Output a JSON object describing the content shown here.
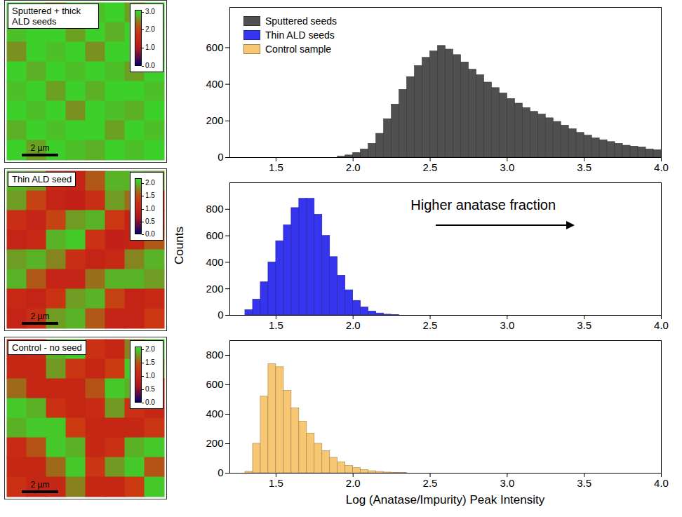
{
  "chart_data": [
    {
      "type": "heatmap",
      "title": "Sputtered + thick ALD seeds",
      "scale_bar": "2 µm",
      "colorbar": {
        "lim": [
          0,
          3.1
        ],
        "ticks": [
          {
            "value": 0,
            "label": "0.0"
          },
          {
            "value": 1,
            "label": "1.0"
          },
          {
            "value": 2,
            "label": "2.0"
          },
          {
            "value": 3,
            "label": "3.0"
          }
        ]
      },
      "cells": [
        [
          3.0,
          2.9,
          2.6,
          3.0,
          2.9,
          3.0,
          2.7,
          3.0
        ],
        [
          2.9,
          3.0,
          3.0,
          2.7,
          3.0,
          2.8,
          3.0,
          2.9
        ],
        [
          2.6,
          3.0,
          2.9,
          3.0,
          2.6,
          3.0,
          3.0,
          2.8
        ],
        [
          3.0,
          2.8,
          3.0,
          2.9,
          3.0,
          2.9,
          2.7,
          3.0
        ],
        [
          2.9,
          3.0,
          2.7,
          3.0,
          2.8,
          3.0,
          3.0,
          2.9
        ],
        [
          3.0,
          2.9,
          3.0,
          2.6,
          3.0,
          2.9,
          2.8,
          3.0
        ],
        [
          2.8,
          3.0,
          2.9,
          3.0,
          3.0,
          2.7,
          3.0,
          2.9
        ],
        [
          3.0,
          2.7,
          3.0,
          2.9,
          2.8,
          3.0,
          2.9,
          3.0
        ]
      ]
    },
    {
      "type": "heatmap",
      "title": "Thin ALD seed",
      "scale_bar": "2 µm",
      "colorbar": {
        "lim": [
          0,
          2.2
        ],
        "ticks": [
          {
            "value": 0,
            "label": "0.0"
          },
          0.5,
          {
            "value": 1,
            "label": "1.0"
          },
          1.5,
          {
            "value": 2,
            "label": "2.0"
          }
        ]
      },
      "cells": [
        [
          2.0,
          1.9,
          1.1,
          1.0,
          1.6,
          2.0,
          2.0,
          1.9
        ],
        [
          1.9,
          1.5,
          1.0,
          0.9,
          1.2,
          1.9,
          1.7,
          1.2
        ],
        [
          1.2,
          1.0,
          1.5,
          1.9,
          2.0,
          1.4,
          1.0,
          1.1
        ],
        [
          1.0,
          1.1,
          2.0,
          2.1,
          1.3,
          0.9,
          1.0,
          1.6
        ],
        [
          1.9,
          2.0,
          1.8,
          1.2,
          1.0,
          1.1,
          1.8,
          2.0
        ],
        [
          2.0,
          1.6,
          1.0,
          1.0,
          1.7,
          2.0,
          2.0,
          1.9
        ],
        [
          1.1,
          1.0,
          1.3,
          1.9,
          2.0,
          1.5,
          1.0,
          1.1
        ],
        [
          1.0,
          1.2,
          1.9,
          2.0,
          1.6,
          1.0,
          1.0,
          1.4
        ]
      ]
    },
    {
      "type": "heatmap",
      "title": "Control - no seed",
      "scale_bar": "2 µm",
      "colorbar": {
        "lim": [
          0,
          2.1
        ],
        "ticks": [
          {
            "value": 0,
            "label": "0.0"
          },
          0.5,
          {
            "value": 1,
            "label": "1.0"
          },
          1.5,
          {
            "value": 2,
            "label": "2.0"
          }
        ]
      },
      "cells": [
        [
          1.0,
          1.1,
          1.9,
          2.0,
          1.2,
          1.0,
          1.7,
          2.0
        ],
        [
          1.0,
          1.0,
          1.8,
          1.3,
          1.0,
          1.4,
          2.0,
          1.8
        ],
        [
          1.6,
          1.0,
          1.0,
          1.0,
          1.5,
          2.0,
          1.9,
          1.1
        ],
        [
          2.0,
          1.9,
          1.2,
          1.0,
          1.1,
          1.8,
          1.2,
          1.0
        ],
        [
          1.9,
          2.0,
          2.0,
          1.4,
          1.0,
          1.0,
          1.0,
          1.3
        ],
        [
          1.1,
          1.5,
          2.0,
          1.9,
          1.0,
          1.2,
          1.9,
          2.0
        ],
        [
          1.0,
          1.0,
          1.6,
          2.0,
          1.3,
          1.8,
          2.0,
          1.5
        ],
        [
          1.2,
          1.0,
          1.0,
          1.7,
          1.0,
          1.0,
          1.4,
          2.0
        ]
      ]
    },
    {
      "type": "histogram",
      "xlabel": "Log (Anatase/Impurity) Peak Intensity",
      "ylabel": "Counts",
      "xlim": [
        1.2,
        4.0
      ],
      "xticks": [
        1.5,
        {
          "value": 2,
          "label": "2.0"
        },
        2.5,
        {
          "value": 3,
          "label": "3.0"
        },
        3.5,
        {
          "value": 4,
          "label": "4.0"
        }
      ],
      "legend": "top-left",
      "annotations": [
        {
          "text": "Higher anatase fraction"
        }
      ],
      "bins": [
        1.2,
        1.25,
        1.3,
        1.35,
        1.4,
        1.45,
        1.5,
        1.55,
        1.6,
        1.65,
        1.7,
        1.75,
        1.8,
        1.85,
        1.9,
        1.95,
        2.0,
        2.05,
        2.1,
        2.15,
        2.2,
        2.25,
        2.3,
        2.35,
        2.4,
        2.45,
        2.5,
        2.55,
        2.6,
        2.65,
        2.7,
        2.75,
        2.8,
        2.85,
        2.9,
        2.95,
        3.0,
        3.05,
        3.1,
        3.15,
        3.2,
        3.25,
        3.3,
        3.35,
        3.4,
        3.45,
        3.5,
        3.55,
        3.6,
        3.65,
        3.7,
        3.75,
        3.8,
        3.85,
        3.9,
        3.95,
        4.0
      ],
      "series": [
        {
          "name": "Sputtered seeds",
          "color": "#505050",
          "ylim": [
            0,
            820
          ],
          "yticks": [
            0,
            200,
            400,
            600
          ],
          "values": [
            0,
            0,
            0,
            0,
            0,
            0,
            0,
            0,
            0,
            0,
            0,
            0,
            0,
            0,
            5,
            12,
            25,
            45,
            75,
            130,
            210,
            290,
            370,
            440,
            500,
            545,
            580,
            610,
            590,
            560,
            520,
            480,
            450,
            410,
            380,
            350,
            320,
            295,
            270,
            250,
            235,
            215,
            195,
            175,
            155,
            135,
            120,
            105,
            95,
            85,
            75,
            65,
            60,
            55,
            45,
            40
          ]
        },
        {
          "name": "Thin ALD seeds",
          "color": "#3535f0",
          "ylim": [
            0,
            1000
          ],
          "yticks": [
            0,
            200,
            400,
            600,
            800
          ],
          "values": [
            0,
            0,
            40,
            120,
            250,
            400,
            560,
            680,
            810,
            880,
            880,
            760,
            600,
            440,
            300,
            190,
            110,
            60,
            30,
            15,
            6,
            3,
            0,
            0,
            0,
            0,
            0,
            0,
            0,
            0,
            0,
            0,
            0,
            0,
            0,
            0,
            0,
            0,
            0,
            0,
            0,
            0,
            0,
            0,
            0,
            0,
            0,
            0,
            0,
            0,
            0,
            0,
            0,
            0,
            0,
            0
          ]
        },
        {
          "name": "Control sample",
          "color": "#f8c774",
          "ylim": [
            0,
            900
          ],
          "yticks": [
            0,
            200,
            400,
            600,
            800
          ],
          "values": [
            0,
            0,
            10,
            200,
            520,
            740,
            720,
            560,
            440,
            350,
            270,
            200,
            150,
            105,
            75,
            50,
            35,
            22,
            14,
            9,
            5,
            3,
            2,
            0,
            0,
            0,
            0,
            0,
            0,
            0,
            0,
            0,
            0,
            0,
            0,
            0,
            0,
            0,
            0,
            0,
            0,
            0,
            0,
            0,
            0,
            0,
            0,
            0,
            0,
            0,
            0,
            0,
            0,
            0,
            0,
            0
          ]
        }
      ]
    }
  ]
}
